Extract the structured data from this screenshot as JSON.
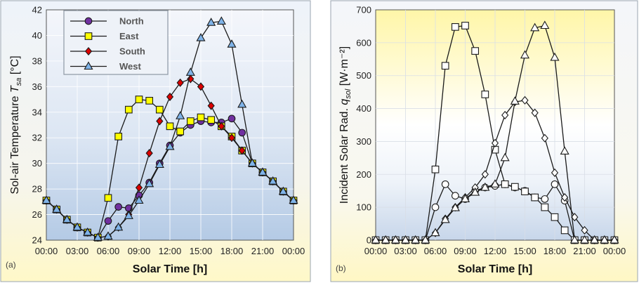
{
  "chart_data": [
    {
      "type": "line",
      "panel_label": "(a)",
      "xlabel": "Solar Time [h]",
      "ylabel": {
        "prefix": "Sol-air Temperature ",
        "var": "T",
        "sub": "sa",
        "unit": " [°C]"
      },
      "x_ticks": [
        "00:00",
        "03:00",
        "06:00",
        "09:00",
        "12:00",
        "15:00",
        "18:00",
        "21:00",
        "00:00"
      ],
      "xlim": [
        0,
        24
      ],
      "ylim": [
        24,
        42
      ],
      "y_ticks": [
        24,
        26,
        28,
        30,
        32,
        34,
        36,
        38,
        40,
        42
      ],
      "grid": true,
      "legend_position": "top-left",
      "x": [
        0,
        1,
        2,
        3,
        4,
        5,
        6,
        7,
        8,
        9,
        10,
        11,
        12,
        13,
        14,
        15,
        16,
        17,
        18,
        19,
        20,
        21,
        22,
        23,
        24
      ],
      "series": [
        {
          "name": "North",
          "marker": "circle",
          "fill": "#7030a0",
          "values": [
            27.1,
            26.4,
            25.6,
            25.0,
            24.6,
            24.2,
            25.5,
            26.6,
            26.5,
            27.5,
            28.5,
            30.0,
            31.4,
            32.4,
            33.0,
            33.3,
            33.2,
            33.2,
            33.5,
            32.4,
            30.0,
            29.3,
            28.6,
            27.8,
            27.1
          ]
        },
        {
          "name": "East",
          "marker": "square",
          "fill": "#ffff00",
          "values": [
            27.1,
            26.4,
            25.6,
            25.0,
            24.6,
            24.2,
            27.3,
            32.1,
            34.2,
            35.0,
            34.9,
            34.2,
            32.9,
            32.5,
            33.3,
            33.6,
            33.4,
            32.9,
            32.1,
            31.0,
            30.0,
            29.3,
            28.6,
            27.8,
            27.1
          ]
        },
        {
          "name": "South",
          "marker": "diamond",
          "fill": "#dd0000",
          "values": [
            27.1,
            26.4,
            25.6,
            25.0,
            24.6,
            24.2,
            24.3,
            25.0,
            26.0,
            28.1,
            30.8,
            33.3,
            35.2,
            36.3,
            36.6,
            36.0,
            34.5,
            32.9,
            32.0,
            31.0,
            30.0,
            29.3,
            28.6,
            27.8,
            27.1
          ]
        },
        {
          "name": "West",
          "marker": "triangle",
          "fill": "#7fb3e8",
          "values": [
            27.1,
            26.4,
            25.6,
            25.0,
            24.6,
            24.2,
            24.3,
            25.0,
            25.9,
            27.1,
            28.4,
            29.9,
            31.3,
            33.7,
            37.1,
            39.8,
            41.0,
            41.1,
            39.3,
            34.6,
            30.0,
            29.3,
            28.6,
            27.8,
            27.1
          ]
        }
      ]
    },
    {
      "type": "line",
      "panel_label": "(b)",
      "xlabel": "Solar Time [h]",
      "ylabel": {
        "prefix": "Incident Solar Rad. ",
        "var": "q",
        "sub": "sol",
        "unit": " [W·m⁻²]"
      },
      "x_ticks": [
        "00:00",
        "03:00",
        "06:00",
        "09:00",
        "12:00",
        "15:00",
        "18:00",
        "21:00",
        "00:00"
      ],
      "xlim": [
        0,
        24
      ],
      "ylim": [
        0,
        700
      ],
      "y_ticks": [
        0,
        100,
        200,
        300,
        400,
        500,
        600,
        700
      ],
      "grid": true,
      "x": [
        0,
        1,
        2,
        3,
        4,
        5,
        6,
        7,
        8,
        9,
        10,
        11,
        12,
        13,
        14,
        15,
        16,
        17,
        18,
        19,
        20,
        21,
        22,
        23,
        24
      ],
      "series": [
        {
          "marker": "circle",
          "fill": "#ffffff",
          "values": [
            0,
            0,
            0,
            0,
            0,
            0,
            100,
            170,
            135,
            125,
            150,
            160,
            165,
            170,
            160,
            150,
            130,
            125,
            170,
            120,
            0,
            0,
            0,
            0,
            0
          ]
        },
        {
          "marker": "square",
          "fill": "#ffffff",
          "values": [
            0,
            0,
            0,
            0,
            0,
            0,
            215,
            530,
            648,
            652,
            575,
            443,
            275,
            170,
            162,
            148,
            130,
            100,
            70,
            30,
            0,
            0,
            0,
            0,
            0
          ]
        },
        {
          "marker": "diamond",
          "fill": "#ffffff",
          "values": [
            0,
            0,
            0,
            0,
            0,
            0,
            22,
            65,
            100,
            130,
            160,
            200,
            295,
            380,
            420,
            425,
            387,
            310,
            205,
            130,
            70,
            30,
            0,
            0,
            0
          ]
        },
        {
          "marker": "triangle",
          "fill": "#ffffff",
          "values": [
            0,
            0,
            0,
            0,
            0,
            0,
            22,
            62,
            98,
            125,
            145,
            160,
            170,
            250,
            422,
            562,
            645,
            652,
            555,
            270,
            0,
            0,
            0,
            0,
            0
          ]
        }
      ]
    }
  ]
}
